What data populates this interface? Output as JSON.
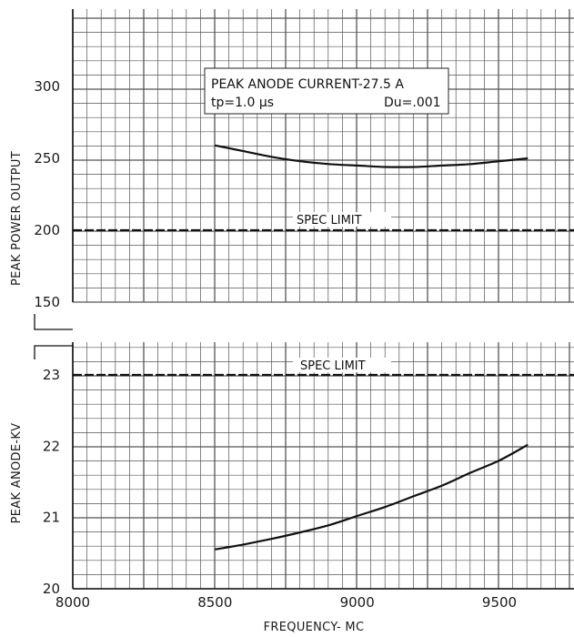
{
  "chart_data": [
    {
      "type": "line",
      "ylabel": "PEAK POWER OUTPUT",
      "xlim": [
        8000,
        9600
      ],
      "ylim": [
        150,
        300
      ],
      "y_ticks": [
        "300",
        "250",
        "200",
        "150"
      ],
      "grid": true,
      "annotation": {
        "line1": "PEAK ANODE CURRENT-27.5 A",
        "line2_left": "tp=1.0 μs",
        "line2_right": "Du=.001"
      },
      "spec_limit": {
        "label": "SPEC LIMIT",
        "value": 200
      },
      "series": [
        {
          "x": [
            8500,
            8600,
            8700,
            8800,
            8900,
            9000,
            9100,
            9200,
            9300,
            9400,
            9500,
            9600
          ],
          "values": [
            259,
            255,
            251,
            248,
            246,
            245,
            244,
            244,
            245,
            246,
            248,
            250
          ]
        }
      ]
    },
    {
      "type": "line",
      "ylabel": "PEAK ANODE-KV",
      "xlabel": "FREQUENCY- MC",
      "xlim": [
        8000,
        9600
      ],
      "ylim": [
        20,
        23.3
      ],
      "x_ticks": [
        "8000",
        "8500",
        "9000",
        "9500"
      ],
      "y_ticks": [
        "23",
        "22",
        "21",
        "20"
      ],
      "grid": true,
      "spec_limit": {
        "label": "SPEC LIMIT",
        "value": 23
      },
      "series": [
        {
          "x": [
            8500,
            8600,
            8700,
            8800,
            8900,
            9000,
            9100,
            9200,
            9300,
            9400,
            9500,
            9600
          ],
          "values": [
            20.55,
            20.62,
            20.7,
            20.79,
            20.89,
            21.02,
            21.15,
            21.3,
            21.45,
            21.63,
            21.8,
            22.02
          ]
        }
      ]
    }
  ]
}
